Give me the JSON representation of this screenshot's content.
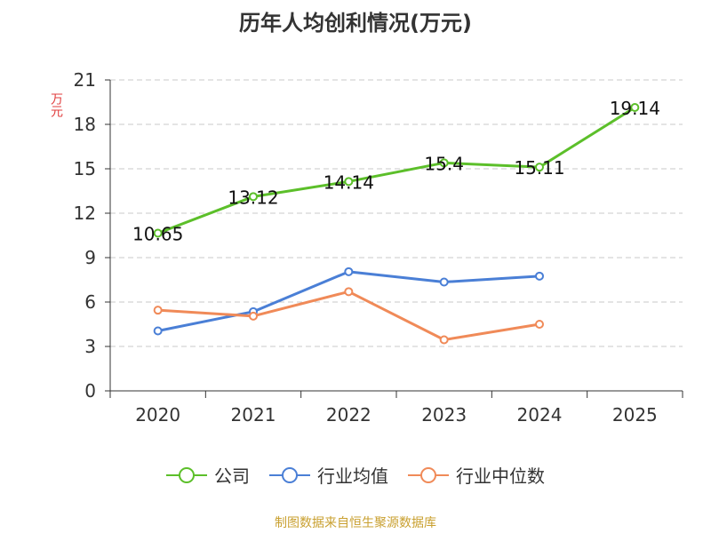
{
  "chart_data": {
    "type": "line",
    "title": "历年人均创利情况(万元)",
    "xlabel": "",
    "ylabel": "万元",
    "categories": [
      "2020",
      "2021",
      "2022",
      "2023",
      "2024",
      "2025"
    ],
    "yticks": [
      0,
      3,
      6,
      9,
      12,
      15,
      18,
      21
    ],
    "ylim": [
      0,
      21
    ],
    "grid": true,
    "legend_position": "bottom",
    "series": [
      {
        "name": "公司",
        "color": "#5cbf2a",
        "values": [
          10.65,
          13.12,
          14.14,
          15.4,
          15.11,
          19.14
        ],
        "labels": [
          "10.65",
          "13.12",
          "14.14",
          "15.4",
          "15.11",
          "19.14"
        ]
      },
      {
        "name": "行业均值",
        "color": "#4a7fd6",
        "values": [
          4.05,
          5.35,
          8.05,
          7.35,
          7.75,
          null
        ]
      },
      {
        "name": "行业中位数",
        "color": "#f08a58",
        "values": [
          5.45,
          5.05,
          6.7,
          3.45,
          4.5,
          null
        ]
      }
    ]
  },
  "footer": "制图数据来自恒生聚源数据库"
}
